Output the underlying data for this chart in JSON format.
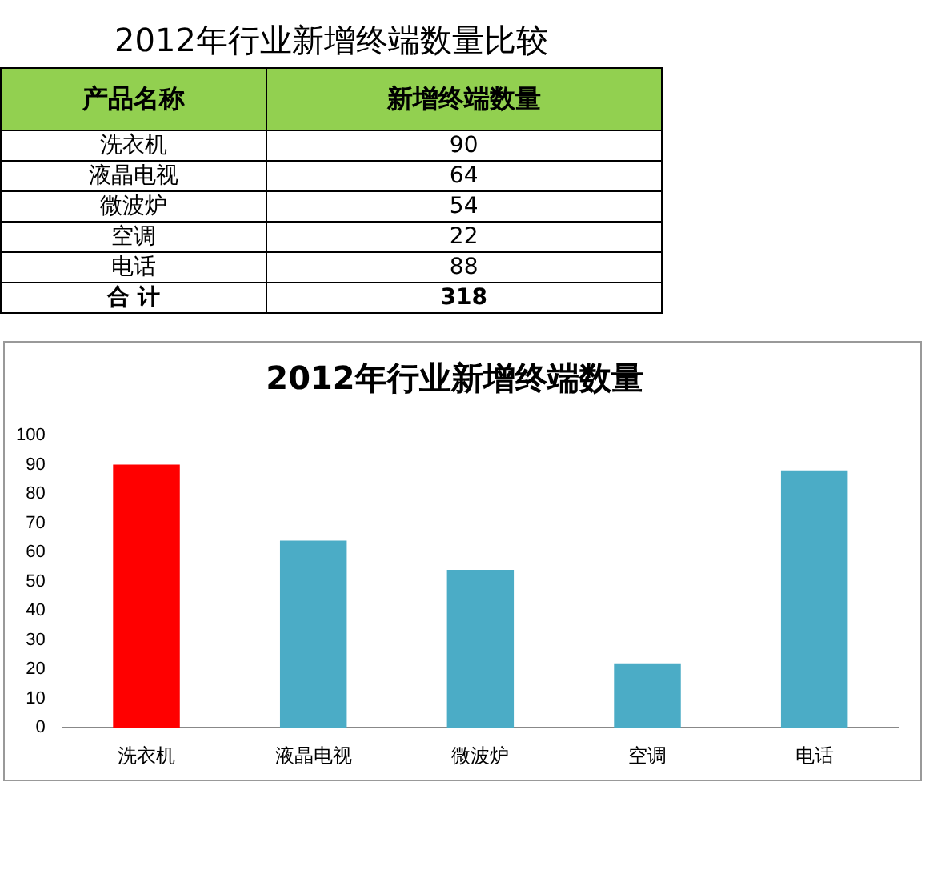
{
  "chart_data": {
    "type": "bar",
    "title": "2012年行业新增终端数量",
    "categories": [
      "洗衣机",
      "液晶电视",
      "微波炉",
      "空调",
      "电话"
    ],
    "values": [
      90,
      64,
      54,
      22,
      88
    ],
    "colors": [
      "#ff0000",
      "#4bacc6",
      "#4bacc6",
      "#4bacc6",
      "#4bacc6"
    ],
    "ylim": [
      0,
      100
    ],
    "yticks": [
      0,
      10,
      20,
      30,
      40,
      50,
      60,
      70,
      80,
      90,
      100
    ],
    "grid": false,
    "legend": false,
    "annotations": [
      "2012年行业新增终端数量比较",
      "产品名称",
      "新增终端数量",
      "合 计",
      "318",
      "90",
      "64",
      "54",
      "22",
      "88"
    ]
  }
}
